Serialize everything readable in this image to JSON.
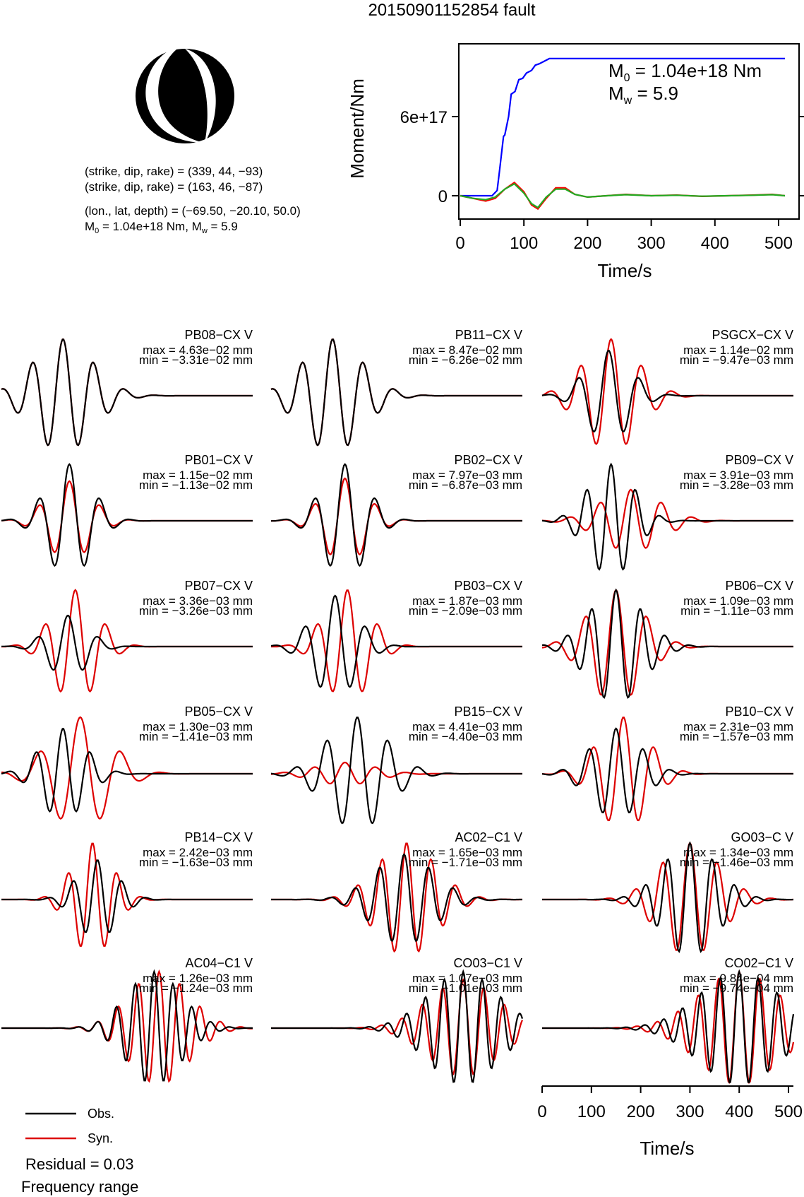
{
  "title": "20150901152854 fault",
  "mechanism": {
    "line1": "(strike, dip, rake) = (339, 44, −93)",
    "line2": "(strike, dip, rake) = (163, 46, −87)",
    "line3": "(lon., lat, depth) = (−69.50, −20.10, 50.0)",
    "line4_prefix": "M",
    "line4_sub": "0",
    "line4_mid": " = 1.04e+18 Nm, M",
    "line4_sub2": "w",
    "line4_end": " = 5.9"
  },
  "moment_plot": {
    "ylabel": "Moment/Nm",
    "xlabel": "Time/s",
    "m0_prefix": "M",
    "m0_sub": "0",
    "m0_value": " = 1.04e+18 Nm",
    "mw_prefix": "M",
    "mw_sub": "w",
    "mw_value": " = 5.9",
    "yticks": [
      "0",
      "6e+17"
    ],
    "xticks": [
      "0",
      "100",
      "200",
      "300",
      "400",
      "500"
    ]
  },
  "chart_data": [
    {
      "type": "line",
      "name": "moment-rate",
      "xlabel": "Time/s",
      "ylabel": "Moment/Nm",
      "xlim": [
        0,
        510
      ],
      "ylim": [
        -1e+17,
        1.15e+18
      ],
      "series": [
        {
          "color": "#0000ff",
          "x": [
            0,
            50,
            58,
            62,
            68,
            70,
            76,
            80,
            86,
            92,
            98,
            104,
            112,
            118,
            124,
            132,
            140,
            150,
            160,
            510
          ],
          "y": [
            0,
            0,
            4e+16,
            2e+17,
            4.5e+17,
            4.6e+17,
            6e+17,
            7.7e+17,
            7.9e+17,
            8.8e+17,
            8.9e+17,
            9.3e+17,
            9.5e+17,
            9.9e+17,
            1e+18,
            1.02e+18,
            1.04e+18,
            1.04e+18,
            1.04e+18,
            1.04e+18
          ]
        },
        {
          "color": "#ff0000",
          "x": [
            0,
            20,
            40,
            55,
            70,
            85,
            100,
            112,
            122,
            135,
            150,
            165,
            180,
            200,
            230,
            260,
            300,
            340,
            380,
            420,
            460,
            490,
            510
          ],
          "y": [
            0,
            -2e+16,
            -4e+16,
            -2e+16,
            5e+16,
            1e+17,
            3e+16,
            -7e+16,
            -1e+17,
            -2e+16,
            6e+16,
            6e+16,
            1e+16,
            -1e+16,
            0,
            1e+16,
            0,
            5000000000000000.0,
            -5000000000000000.0,
            0,
            5000000000000000.0,
            1e+16,
            0
          ]
        },
        {
          "color": "#22aa22",
          "x": [
            0,
            20,
            40,
            55,
            70,
            85,
            100,
            112,
            122,
            135,
            150,
            165,
            180,
            200,
            230,
            260,
            300,
            340,
            380,
            420,
            460,
            490,
            510
          ],
          "y": [
            0,
            -2e+16,
            -3e+16,
            -1e+16,
            5e+16,
            9e+16,
            2e+16,
            -6e+16,
            -9e+16,
            -1e+16,
            5e+16,
            5e+16,
            1e+16,
            -1e+16,
            0,
            8000000000000000.0,
            0,
            4000000000000000.0,
            -4000000000000000.0,
            0,
            4000000000000000.0,
            8000000000000000.0,
            0
          ]
        }
      ]
    },
    {
      "type": "line",
      "name": "waveforms",
      "xlabel": "Time/s",
      "xlim": [
        0,
        510
      ],
      "xticks": [
        "0",
        "100",
        "200",
        "300",
        "400",
        "500"
      ],
      "legend": {
        "position": "bottom-left",
        "entries": [
          "Obs.",
          "Syn."
        ]
      },
      "stations": [
        {
          "name": "PB08−CX V",
          "max": "max = 4.63e−02 mm",
          "min": "min = −3.31e−02 mm",
          "obs_scale": 1.0,
          "syn_scale": 1.0,
          "obs_t": 125,
          "syn_t": 125,
          "obs_f": 0.016,
          "syn_f": 0.016,
          "obs_d": 60,
          "syn_d": 60
        },
        {
          "name": "PB11−CX V",
          "max": "max = 8.47e−02 mm",
          "min": "min = −6.26e−02 mm",
          "obs_scale": 1.0,
          "syn_scale": 1.0,
          "obs_t": 125,
          "syn_t": 125,
          "obs_f": 0.016,
          "syn_f": 0.016,
          "obs_d": 60,
          "syn_d": 60
        },
        {
          "name": "PSGCX−CX V",
          "max": "max = 1.14e−02 mm",
          "min": "min = −9.47e−03 mm",
          "obs_scale": 0.8,
          "syn_scale": 1.0,
          "obs_t": 135,
          "syn_t": 140,
          "obs_f": 0.016,
          "syn_f": 0.016,
          "obs_d": 45,
          "syn_d": 55
        },
        {
          "name": "PB01−CX V",
          "max": "max = 1.15e−02 mm",
          "min": "min = −1.13e−02 mm",
          "obs_scale": 1.0,
          "syn_scale": 0.7,
          "obs_t": 138,
          "syn_t": 138,
          "obs_f": 0.016,
          "syn_f": 0.016,
          "obs_d": 45,
          "syn_d": 45
        },
        {
          "name": "PB02−CX V",
          "max": "max = 7.97e−03 mm",
          "min": "min = −6.87e−03 mm",
          "obs_scale": 1.0,
          "syn_scale": 0.75,
          "obs_t": 150,
          "syn_t": 150,
          "obs_f": 0.016,
          "syn_f": 0.016,
          "obs_d": 45,
          "syn_d": 45
        },
        {
          "name": "PB09−CX V",
          "max": "max = 3.91e−03 mm",
          "min": "min = −3.28e−03 mm",
          "obs_scale": 1.0,
          "syn_scale": 0.55,
          "obs_t": 140,
          "syn_t": 180,
          "obs_f": 0.02,
          "syn_f": 0.016,
          "obs_d": 45,
          "syn_d": 60
        },
        {
          "name": "PB07−CX V",
          "max": "max = 3.36e−03 mm",
          "min": "min = −3.26e−03 mm",
          "obs_scale": 0.55,
          "syn_scale": 1.0,
          "obs_t": 135,
          "syn_t": 150,
          "obs_f": 0.016,
          "syn_f": 0.016,
          "obs_d": 40,
          "syn_d": 45
        },
        {
          "name": "PB03−CX V",
          "max": "max = 1.87e−03 mm",
          "min": "min = −2.09e−03 mm",
          "obs_scale": 0.9,
          "syn_scale": 1.0,
          "obs_t": 130,
          "syn_t": 155,
          "obs_f": 0.016,
          "syn_f": 0.016,
          "obs_d": 45,
          "syn_d": 45
        },
        {
          "name": "PB06−CX V",
          "max": "max = 1.09e−03 mm",
          "min": "min = −1.11e−03 mm",
          "obs_scale": 1.0,
          "syn_scale": 1.0,
          "obs_t": 150,
          "syn_t": 150,
          "obs_f": 0.02,
          "syn_f": 0.016,
          "obs_d": 55,
          "syn_d": 55
        },
        {
          "name": "PB05−CX V",
          "max": "max = 1.30e−03 mm",
          "min": "min = −1.41e−03 mm",
          "obs_scale": 0.8,
          "syn_scale": 1.0,
          "obs_t": 125,
          "syn_t": 160,
          "obs_f": 0.018,
          "syn_f": 0.012,
          "obs_d": 45,
          "syn_d": 60
        },
        {
          "name": "PB15−CX V",
          "max": "max = 4.41e−03 mm",
          "min": "min = −4.40e−03 mm",
          "obs_scale": 1.0,
          "syn_scale": 0.2,
          "obs_t": 175,
          "syn_t": 150,
          "obs_f": 0.016,
          "syn_f": 0.016,
          "obs_d": 60,
          "syn_d": 60
        },
        {
          "name": "PB10−CX V",
          "max": "max = 2.31e−03 mm",
          "min": "min = −1.57e−03 mm",
          "obs_scale": 0.8,
          "syn_scale": 1.0,
          "obs_t": 150,
          "syn_t": 165,
          "obs_f": 0.018,
          "syn_f": 0.016,
          "obs_d": 50,
          "syn_d": 50
        },
        {
          "name": "PB14−CX V",
          "max": "max = 2.42e−03 mm",
          "min": "min = −1.63e−03 mm",
          "obs_scale": 0.7,
          "syn_scale": 1.0,
          "obs_t": 195,
          "syn_t": 185,
          "obs_f": 0.02,
          "syn_f": 0.02,
          "obs_d": 40,
          "syn_d": 40
        },
        {
          "name": "AC02−C1 V",
          "max": "max = 1.65e−03 mm",
          "min": "min = −1.71e−03 mm",
          "obs_scale": 0.8,
          "syn_scale": 1.0,
          "obs_t": 270,
          "syn_t": 275,
          "obs_f": 0.02,
          "syn_f": 0.02,
          "obs_d": 60,
          "syn_d": 60
        },
        {
          "name": "GO03−C V",
          "max": "max = 1.34e−03 mm",
          "min": "min = −1.46e−03 mm",
          "obs_scale": 1.0,
          "syn_scale": 1.0,
          "obs_t": 300,
          "syn_t": 300,
          "obs_f": 0.022,
          "syn_f": 0.018,
          "obs_d": 55,
          "syn_d": 60
        },
        {
          "name": "AC04−C1 V",
          "max": "max = 1.26e−03 mm",
          "min": "min = −1.24e−03 mm",
          "obs_scale": 1.0,
          "syn_scale": 1.0,
          "obs_t": 310,
          "syn_t": 320,
          "obs_f": 0.026,
          "syn_f": 0.024,
          "obs_d": 55,
          "syn_d": 60
        },
        {
          "name": "CO03−C1 V",
          "max": "max = 1.07e−03 mm",
          "min": "min = −1.01e−03 mm",
          "obs_scale": 1.0,
          "syn_scale": 0.85,
          "obs_t": 390,
          "syn_t": 390,
          "obs_f": 0.026,
          "syn_f": 0.024,
          "obs_d": 70,
          "syn_d": 70
        },
        {
          "name": "CO02−C1 V",
          "max": "max = 9.84e−04 mm",
          "min": "min = −9.74e−04 mm",
          "obs_scale": 1.0,
          "syn_scale": 1.0,
          "obs_t": 400,
          "syn_t": 400,
          "obs_f": 0.026,
          "syn_f": 0.024,
          "obs_d": 80,
          "syn_d": 80
        }
      ]
    }
  ],
  "legend": {
    "obs": "Obs.",
    "syn": "Syn."
  },
  "footer": {
    "residual": "Residual = 0.03",
    "frequency": "Frequency range"
  },
  "colors": {
    "obs": "#000000",
    "syn": "#dd0000",
    "moment": "#0000ff",
    "green": "#22aa22"
  }
}
